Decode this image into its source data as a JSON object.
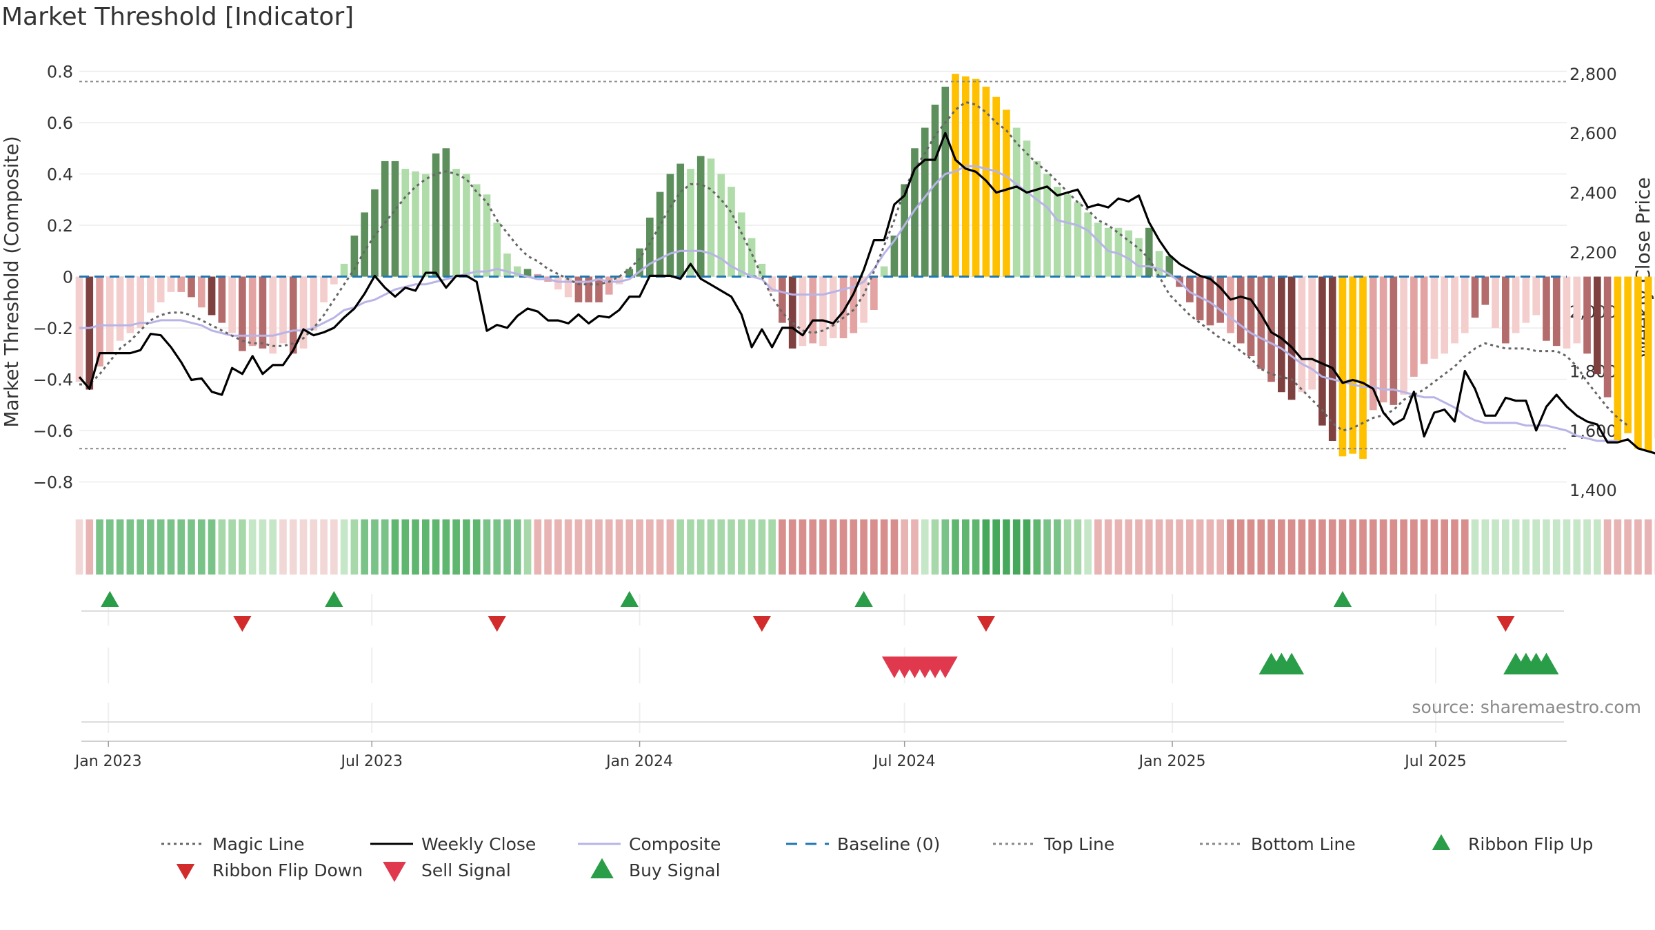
{
  "chart_data": {
    "title": "Market Threshold [Indicator]",
    "source": "source: sharemaestro.com",
    "type": "bar",
    "y_left": {
      "label": "Market Threshold (Composite)",
      "ylim": [
        -0.86,
        0.82
      ],
      "ticks": [
        0.8,
        0.6,
        0.4,
        0.2,
        0,
        -0.2,
        -0.4,
        -0.6,
        -0.8
      ],
      "tick_labels": [
        "0.8",
        "0.6",
        "0.4",
        "0.2",
        "0",
        "−0.2",
        "−0.4",
        "−0.6",
        "−0.8"
      ]
    },
    "y_right": {
      "label": "Weekly Close Price",
      "ylim": [
        1375,
        2825
      ],
      "ticks": [
        2800,
        2600,
        2400,
        2200,
        2000,
        1800,
        1600,
        1400
      ],
      "tick_labels": [
        "2,800",
        "2,600",
        "2,400",
        "2,200",
        "2,000",
        "1,800",
        "1,600",
        "1,400"
      ]
    },
    "x_axis": {
      "start": "2022-12-12",
      "end": "2025-09-29",
      "tick_dates": [
        "2023-01-01",
        "2023-07-01",
        "2024-01-01",
        "2024-07-01",
        "2025-01-01",
        "2025-07-01"
      ],
      "tick_labels": [
        "Jan 2023",
        "Jul 2023",
        "Jan 2024",
        "Jul 2024",
        "Jan 2025",
        "Jul 2025"
      ]
    },
    "reference_lines": {
      "top_line": 0.76,
      "bottom_line": -0.67,
      "baseline": 0
    },
    "weeks": {
      "start": "2022-12-12",
      "interval_days": 7,
      "composite_bars": [
        -0.41,
        -0.44,
        -0.35,
        -0.3,
        -0.25,
        -0.22,
        -0.2,
        -0.14,
        -0.1,
        -0.06,
        -0.06,
        -0.08,
        -0.12,
        -0.15,
        -0.18,
        -0.22,
        -0.29,
        -0.27,
        -0.28,
        -0.3,
        -0.26,
        -0.3,
        -0.28,
        -0.21,
        -0.1,
        -0.03,
        0.05,
        0.16,
        0.25,
        0.34,
        0.45,
        0.45,
        0.42,
        0.41,
        0.4,
        0.48,
        0.5,
        0.42,
        0.4,
        0.36,
        0.32,
        0.21,
        0.09,
        0.04,
        0.03,
        0.01,
        -0.02,
        -0.05,
        -0.08,
        -0.1,
        -0.1,
        -0.1,
        -0.07,
        -0.03,
        0.03,
        0.11,
        0.23,
        0.33,
        0.4,
        0.44,
        0.42,
        0.47,
        0.46,
        0.4,
        0.35,
        0.25,
        0.15,
        0.05,
        -0.06,
        -0.18,
        -0.28,
        -0.27,
        -0.26,
        -0.27,
        -0.24,
        -0.24,
        -0.22,
        -0.18,
        -0.13,
        0.04,
        0.16,
        0.36,
        0.5,
        0.58,
        0.67,
        0.74,
        0.79,
        0.78,
        0.77,
        0.74,
        0.7,
        0.65,
        0.58,
        0.53,
        0.45,
        0.4,
        0.35,
        0.32,
        0.29,
        0.25,
        0.21,
        0.19,
        0.19,
        0.18,
        0.15,
        0.19,
        0.1,
        0.08,
        -0.04,
        -0.1,
        -0.17,
        -0.19,
        -0.18,
        -0.22,
        -0.26,
        -0.31,
        -0.36,
        -0.41,
        -0.45,
        -0.48,
        -0.45,
        -0.44,
        -0.58,
        -0.64,
        -0.7,
        -0.69,
        -0.71,
        -0.52,
        -0.49,
        -0.5,
        -0.46,
        -0.39,
        -0.34,
        -0.32,
        -0.3,
        -0.26,
        -0.22,
        -0.16,
        -0.11,
        -0.2,
        -0.26,
        -0.22,
        -0.18,
        -0.15,
        -0.25,
        -0.27,
        -0.28,
        -0.26,
        -0.3,
        -0.38,
        -0.47,
        -0.64,
        -0.61,
        -0.67,
        -0.68,
        -0.63
      ],
      "bar_colors": [
        "#f4cdcd",
        "#7f4040",
        "#e3a3a3",
        "#f4cdcd",
        "#f4cdcd",
        "#f4cdcd",
        "#f4cdcd",
        "#f4cdcd",
        "#f4cdcd",
        "#f4cdcd",
        "#e3a3a3",
        "#b36b6b",
        "#e3a3a3",
        "#7f4040",
        "#b36b6b",
        "#f4cdcd",
        "#b36b6b",
        "#e3a3a3",
        "#b36b6b",
        "#f4cdcd",
        "#f4cdcd",
        "#b36b6b",
        "#f4cdcd",
        "#f4cdcd",
        "#f4cdcd",
        "#f4cdcd",
        "#b0dcaa",
        "#5c8f5c",
        "#5c8f5c",
        "#5c8f5c",
        "#5c8f5c",
        "#5c8f5c",
        "#b0dcaa",
        "#b0dcaa",
        "#b0dcaa",
        "#5c8f5c",
        "#5c8f5c",
        "#b0dcaa",
        "#b0dcaa",
        "#b0dcaa",
        "#b0dcaa",
        "#b0dcaa",
        "#b0dcaa",
        "#b0dcaa",
        "#5c8f5c",
        "#e3a3a3",
        "#e3a3a3",
        "#f4cdcd",
        "#f4cdcd",
        "#b36b6b",
        "#b36b6b",
        "#b36b6b",
        "#e3a3a3",
        "#f4cdcd",
        "#5c8f5c",
        "#5c8f5c",
        "#5c8f5c",
        "#5c8f5c",
        "#5c8f5c",
        "#5c8f5c",
        "#b0dcaa",
        "#5c8f5c",
        "#b0dcaa",
        "#b0dcaa",
        "#b0dcaa",
        "#b0dcaa",
        "#b0dcaa",
        "#b0dcaa",
        "#f4cdcd",
        "#b36b6b",
        "#7f4040",
        "#f4cdcd",
        "#e3a3a3",
        "#f4cdcd",
        "#f4cdcd",
        "#e3a3a3",
        "#e3a3a3",
        "#f4cdcd",
        "#e3a3a3",
        "#b0dcaa",
        "#5c8f5c",
        "#5c8f5c",
        "#5c8f5c",
        "#5c8f5c",
        "#5c8f5c",
        "#5c8f5c",
        "#ffc000",
        "#ffc000",
        "#ffc000",
        "#ffc000",
        "#ffc000",
        "#ffc000",
        "#b0dcaa",
        "#b0dcaa",
        "#b0dcaa",
        "#b0dcaa",
        "#b0dcaa",
        "#b0dcaa",
        "#b0dcaa",
        "#b0dcaa",
        "#b0dcaa",
        "#b0dcaa",
        "#b0dcaa",
        "#b0dcaa",
        "#b0dcaa",
        "#5c8f5c",
        "#b0dcaa",
        "#5c8f5c",
        "#b36b6b",
        "#b36b6b",
        "#b36b6b",
        "#b36b6b",
        "#b36b6b",
        "#e3a3a3",
        "#b36b6b",
        "#b36b6b",
        "#b36b6b",
        "#b36b6b",
        "#7f4040",
        "#7f4040",
        "#f4cdcd",
        "#f4cdcd",
        "#7f4040",
        "#7f4040",
        "#ffc000",
        "#ffc000",
        "#ffc000",
        "#e3a3a3",
        "#e3a3a3",
        "#b36b6b",
        "#f4cdcd",
        "#e3a3a3",
        "#e3a3a3",
        "#f4cdcd",
        "#f4cdcd",
        "#f4cdcd",
        "#f4cdcd",
        "#b36b6b",
        "#b36b6b",
        "#f4cdcd",
        "#b36b6b",
        "#f4cdcd",
        "#f4cdcd",
        "#f4cdcd",
        "#b36b6b",
        "#b36b6b",
        "#f4cdcd",
        "#f4cdcd",
        "#b36b6b",
        "#7f4040",
        "#b36b6b",
        "#ffc000",
        "#ffc000",
        "#ffc000",
        "#ffc000",
        "#e3a3a3"
      ],
      "composite_line": [
        -0.2,
        -0.2,
        -0.19,
        -0.19,
        -0.19,
        -0.19,
        -0.18,
        -0.18,
        -0.17,
        -0.17,
        -0.17,
        -0.18,
        -0.19,
        -0.21,
        -0.22,
        -0.23,
        -0.23,
        -0.23,
        -0.23,
        -0.23,
        -0.22,
        -0.21,
        -0.21,
        -0.2,
        -0.18,
        -0.16,
        -0.13,
        -0.12,
        -0.1,
        -0.09,
        -0.07,
        -0.05,
        -0.04,
        -0.03,
        -0.03,
        -0.02,
        -0.01,
        0.0,
        0.01,
        0.02,
        0.02,
        0.03,
        0.02,
        0.01,
        0.0,
        -0.01,
        -0.01,
        -0.02,
        -0.02,
        -0.02,
        -0.02,
        -0.01,
        -0.02,
        -0.02,
        -0.01,
        0.02,
        0.05,
        0.07,
        0.09,
        0.1,
        0.1,
        0.1,
        0.09,
        0.07,
        0.04,
        0.02,
        0.0,
        -0.01,
        -0.05,
        -0.06,
        -0.07,
        -0.07,
        -0.07,
        -0.07,
        -0.06,
        -0.05,
        -0.04,
        -0.02,
        0.03,
        0.09,
        0.14,
        0.2,
        0.26,
        0.31,
        0.36,
        0.4,
        0.41,
        0.43,
        0.43,
        0.42,
        0.41,
        0.39,
        0.36,
        0.33,
        0.3,
        0.27,
        0.22,
        0.21,
        0.2,
        0.18,
        0.14,
        0.1,
        0.09,
        0.07,
        0.04,
        0.04,
        0.03,
        0.01,
        -0.02,
        -0.06,
        -0.08,
        -0.1,
        -0.13,
        -0.16,
        -0.19,
        -0.22,
        -0.24,
        -0.26,
        -0.28,
        -0.31,
        -0.34,
        -0.36,
        -0.39,
        -0.4,
        -0.41,
        -0.42,
        -0.43,
        -0.43,
        -0.44,
        -0.44,
        -0.45,
        -0.46,
        -0.47,
        -0.47,
        -0.49,
        -0.51,
        -0.54,
        -0.56,
        -0.57,
        -0.57,
        -0.57,
        -0.57,
        -0.58,
        -0.58,
        -0.58,
        -0.59,
        -0.6,
        -0.62,
        -0.63,
        -0.64,
        -0.64,
        -0.64
      ],
      "magic_line": [
        -0.42,
        -0.42,
        -0.38,
        -0.33,
        -0.28,
        -0.25,
        -0.21,
        -0.17,
        -0.15,
        -0.14,
        -0.14,
        -0.15,
        -0.17,
        -0.19,
        -0.21,
        -0.23,
        -0.25,
        -0.26,
        -0.26,
        -0.27,
        -0.27,
        -0.26,
        -0.24,
        -0.2,
        -0.15,
        -0.09,
        -0.03,
        0.03,
        0.1,
        0.16,
        0.21,
        0.26,
        0.31,
        0.35,
        0.38,
        0.4,
        0.41,
        0.4,
        0.38,
        0.33,
        0.29,
        0.22,
        0.17,
        0.12,
        0.08,
        0.06,
        0.03,
        0.01,
        -0.01,
        -0.03,
        -0.03,
        -0.03,
        -0.02,
        0.0,
        0.03,
        0.07,
        0.13,
        0.2,
        0.27,
        0.33,
        0.36,
        0.36,
        0.34,
        0.3,
        0.25,
        0.17,
        0.09,
        0.0,
        -0.08,
        -0.14,
        -0.18,
        -0.21,
        -0.22,
        -0.21,
        -0.19,
        -0.16,
        -0.13,
        -0.07,
        0.02,
        0.12,
        0.22,
        0.34,
        0.42,
        0.48,
        0.55,
        0.6,
        0.65,
        0.68,
        0.67,
        0.64,
        0.6,
        0.57,
        0.52,
        0.48,
        0.44,
        0.41,
        0.37,
        0.33,
        0.29,
        0.26,
        0.22,
        0.2,
        0.17,
        0.14,
        0.11,
        0.07,
        0.0,
        -0.07,
        -0.11,
        -0.15,
        -0.18,
        -0.21,
        -0.24,
        -0.26,
        -0.29,
        -0.32,
        -0.36,
        -0.38,
        -0.39,
        -0.4,
        -0.44,
        -0.48,
        -0.52,
        -0.57,
        -0.6,
        -0.59,
        -0.57,
        -0.55,
        -0.54,
        -0.52,
        -0.48,
        -0.46,
        -0.44,
        -0.41,
        -0.38,
        -0.35,
        -0.31,
        -0.28,
        -0.26,
        -0.27,
        -0.28,
        -0.28,
        -0.28,
        -0.29,
        -0.29,
        -0.29,
        -0.31,
        -0.35,
        -0.41,
        -0.46,
        -0.51,
        -0.55,
        -0.58
      ],
      "weekly_close": [
        1780,
        1740,
        1860,
        1860,
        1860,
        1860,
        1870,
        1925,
        1920,
        1880,
        1830,
        1770,
        1775,
        1730,
        1720,
        1810,
        1790,
        1850,
        1790,
        1820,
        1820,
        1870,
        1940,
        1920,
        1930,
        1945,
        1980,
        2010,
        2060,
        2120,
        2080,
        2050,
        2080,
        2070,
        2130,
        2130,
        2080,
        2120,
        2120,
        2100,
        1935,
        1955,
        1945,
        1985,
        2010,
        2000,
        1970,
        1970,
        1960,
        1990,
        1960,
        1985,
        1980,
        2005,
        2050,
        2050,
        2120,
        2120,
        2120,
        2110,
        2160,
        2110,
        2090,
        2070,
        2050,
        1990,
        1880,
        1940,
        1880,
        1945,
        1945,
        1920,
        1970,
        1970,
        1960,
        2000,
        2060,
        2140,
        2240,
        2240,
        2360,
        2390,
        2480,
        2510,
        2510,
        2600,
        2510,
        2480,
        2470,
        2440,
        2400,
        2410,
        2420,
        2400,
        2410,
        2420,
        2390,
        2400,
        2410,
        2350,
        2360,
        2350,
        2380,
        2370,
        2390,
        2300,
        2240,
        2190,
        2160,
        2140,
        2120,
        2110,
        2080,
        2040,
        2050,
        2040,
        1990,
        1930,
        1910,
        1880,
        1840,
        1840,
        1825,
        1810,
        1760,
        1770,
        1760,
        1740,
        1660,
        1620,
        1640,
        1730,
        1580,
        1660,
        1670,
        1630,
        1800,
        1740,
        1650,
        1650,
        1710,
        1700,
        1700,
        1600,
        1680,
        1720,
        1680,
        1650,
        1630,
        1620,
        1560,
        1560,
        1570,
        1540,
        1530,
        1520,
        1600,
        1630,
        1620,
        1640,
        1660
      ],
      "ribbon_colors": [
        "#f2d7d7",
        "#e8b3b3",
        "#79c388",
        "#79c388",
        "#79c388",
        "#79c388",
        "#79c388",
        "#79c388",
        "#79c388",
        "#79c388",
        "#79c388",
        "#79c388",
        "#79c388",
        "#79c388",
        "#a7d8a9",
        "#a7d8a9",
        "#a7d8a9",
        "#c6e6c8",
        "#c6e6c8",
        "#c6e6c8",
        "#f2d7d7",
        "#f2d7d7",
        "#f2d7d7",
        "#f2d7d7",
        "#f2d7d7",
        "#f2d7d7",
        "#c6e6c8",
        "#a7d8a9",
        "#79c388",
        "#79c388",
        "#79c388",
        "#5fb66f",
        "#5fb66f",
        "#5fb66f",
        "#5fb66f",
        "#5fb66f",
        "#5fb66f",
        "#5fb66f",
        "#5fb66f",
        "#5fb66f",
        "#79c388",
        "#79c388",
        "#79c388",
        "#79c388",
        "#a7d8a9",
        "#e8b3b3",
        "#e8b3b3",
        "#e8b3b3",
        "#e8b3b3",
        "#e8b3b3",
        "#e8b3b3",
        "#e8b3b3",
        "#e8b3b3",
        "#e8b3b3",
        "#e8b3b3",
        "#e8b3b3",
        "#e8b3b3",
        "#e8b3b3",
        "#e8b3b3",
        "#a7d8a9",
        "#a7d8a9",
        "#a7d8a9",
        "#a7d8a9",
        "#a7d8a9",
        "#a7d8a9",
        "#a7d8a9",
        "#a7d8a9",
        "#a7d8a9",
        "#a7d8a9",
        "#d98e8e",
        "#d98e8e",
        "#d98e8e",
        "#d98e8e",
        "#d98e8e",
        "#d98e8e",
        "#d98e8e",
        "#d98e8e",
        "#d98e8e",
        "#d98e8e",
        "#d98e8e",
        "#d98e8e",
        "#e8b3b3",
        "#e8b3b3",
        "#c6e6c8",
        "#a7d8a9",
        "#79c388",
        "#5fb66f",
        "#5fb66f",
        "#5fb66f",
        "#45a85a",
        "#45a85a",
        "#45a85a",
        "#45a85a",
        "#45a85a",
        "#5fb66f",
        "#79c388",
        "#79c388",
        "#a7d8a9",
        "#a7d8a9",
        "#c6e6c8",
        "#e8b3b3",
        "#e8b3b3",
        "#e8b3b3",
        "#e8b3b3",
        "#e8b3b3",
        "#e8b3b3",
        "#e8b3b3",
        "#e8b3b3",
        "#e8b3b3",
        "#e8b3b3",
        "#e8b3b3",
        "#e8b3b3",
        "#e8b3b3",
        "#d98e8e",
        "#d98e8e",
        "#d98e8e",
        "#d98e8e",
        "#d98e8e",
        "#d98e8e",
        "#d98e8e",
        "#d98e8e",
        "#d98e8e",
        "#d98e8e",
        "#d98e8e",
        "#d98e8e",
        "#d98e8e",
        "#d98e8e",
        "#d98e8e",
        "#d98e8e",
        "#d98e8e",
        "#d98e8e",
        "#d98e8e",
        "#d98e8e",
        "#d98e8e",
        "#d98e8e",
        "#d98e8e",
        "#d98e8e",
        "#c6e6c8",
        "#c6e6c8",
        "#c6e6c8",
        "#c6e6c8",
        "#c6e6c8",
        "#c6e6c8",
        "#c6e6c8",
        "#c6e6c8",
        "#c6e6c8",
        "#c6e6c8",
        "#c6e6c8",
        "#c6e6c8",
        "#c6e6c8",
        "#e8b3b3",
        "#e8b3b3",
        "#e8b3b3",
        "#e8b3b3",
        "#e8b3b3",
        "#e8b3b3"
      ]
    },
    "signals": {
      "ribbon_flip_up": [
        "2023-01-02",
        "2023-06-05",
        "2023-12-25",
        "2024-06-03",
        "2025-04-28"
      ],
      "ribbon_flip_down": [
        "2023-04-03",
        "2023-09-25",
        "2024-03-25",
        "2024-08-26",
        "2025-08-18"
      ],
      "sell_signal": [
        "2024-06-24",
        "2024-07-01",
        "2024-07-08",
        "2024-07-15",
        "2024-07-22",
        "2024-07-29"
      ],
      "buy_signal": [
        "2025-03-10",
        "2025-03-17",
        "2025-03-24",
        "2025-08-25",
        "2025-09-01",
        "2025-09-08",
        "2025-09-15"
      ]
    },
    "legend": [
      {
        "label": "Magic Line",
        "kind": "dotted",
        "color": "#666666"
      },
      {
        "label": "Weekly Close",
        "kind": "solid",
        "color": "#000000"
      },
      {
        "label": "Composite",
        "kind": "solid",
        "color": "#b8b4e6"
      },
      {
        "label": "Baseline (0)",
        "kind": "dashed",
        "color": "#1f77b4"
      },
      {
        "label": "Top Line",
        "kind": "dotted",
        "color": "#888888"
      },
      {
        "label": "Bottom Line",
        "kind": "dotted",
        "color": "#888888"
      },
      {
        "label": "Ribbon Flip Up",
        "kind": "tri-up",
        "color": "#2a9d48"
      },
      {
        "label": "Ribbon Flip Down",
        "kind": "tri-down",
        "color": "#d22b2b"
      },
      {
        "label": "Sell Signal",
        "kind": "tri-down",
        "color": "#e0394e"
      },
      {
        "label": "Buy Signal",
        "kind": "tri-up",
        "color": "#2a9d48"
      }
    ],
    "legend_placement": "bottom",
    "grid": true
  }
}
